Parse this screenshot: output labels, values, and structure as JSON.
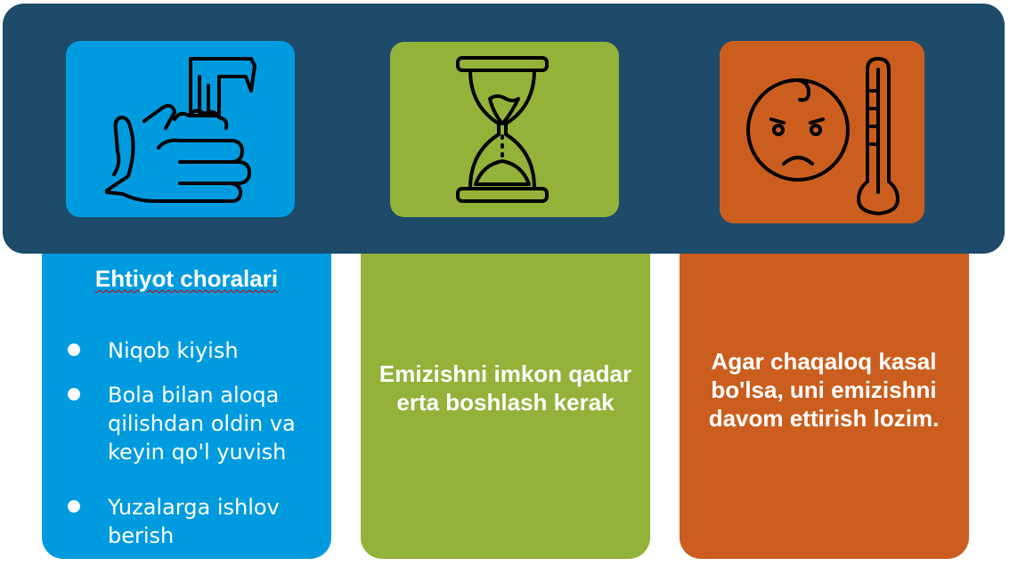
{
  "colors": {
    "navy": "#1d4b69",
    "blue": "#009bdf",
    "green": "#93b23a",
    "orange": "#cb5e1e"
  },
  "icons": [
    "hand-washing-icon",
    "hourglass-icon",
    "sick-baby-icon",
    "thermometer-icon"
  ],
  "card_blue": {
    "title": "Ehtiyot choralari",
    "bullets": [
      "Niqob kiyish",
      "Bola bilan aloqa qilishdan oldin va keyin qo'l yuvish",
      "Yuzalarga ishlov berish"
    ]
  },
  "card_green": {
    "text": "Emizishni imkon qadar erta boshlash kerak"
  },
  "card_orange": {
    "text": "Agar chaqaloq kasal bo'lsa, uni emizishni davom ettirish lozim."
  }
}
